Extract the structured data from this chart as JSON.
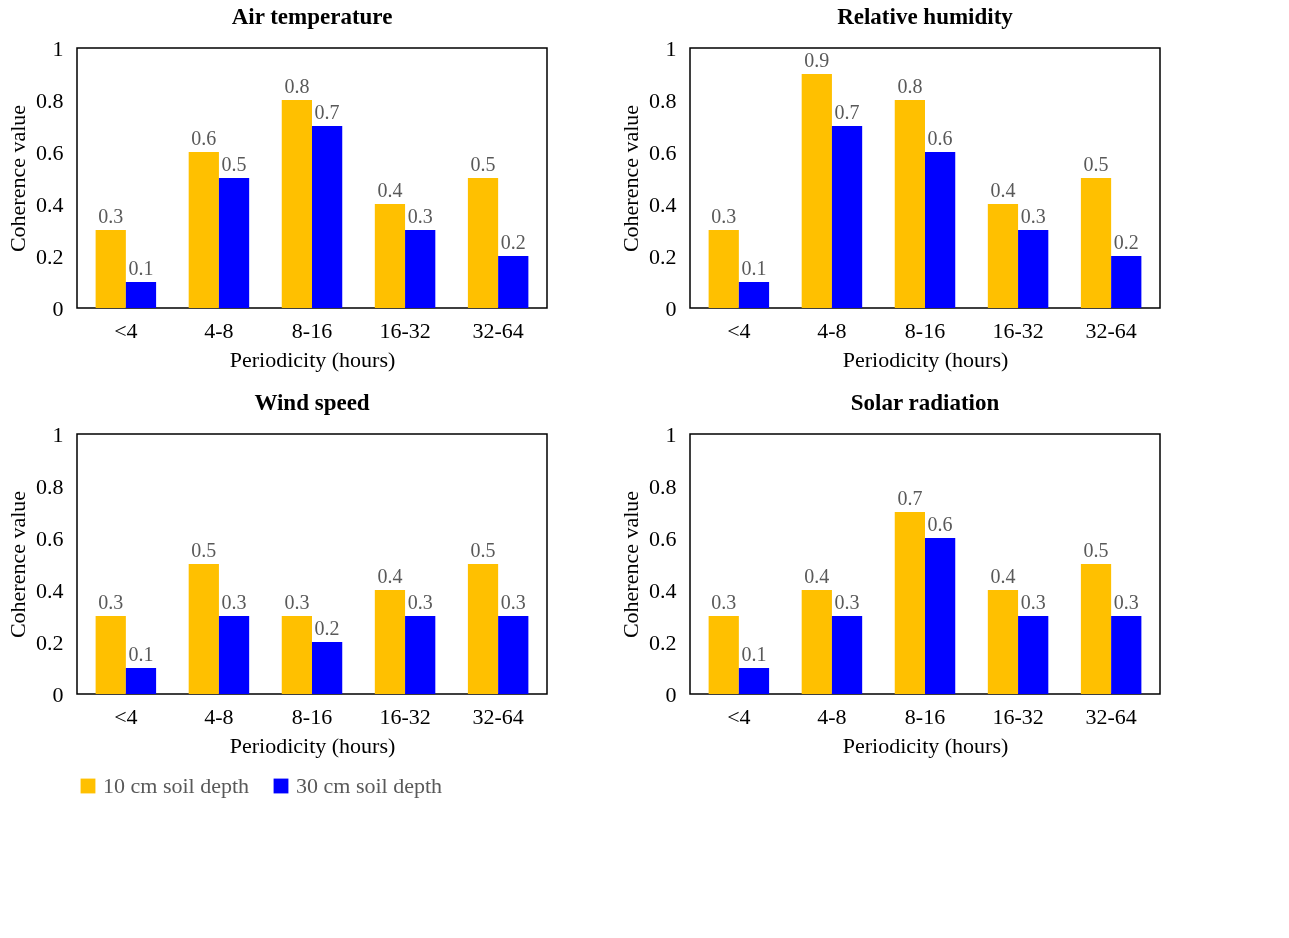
{
  "chart_data": [
    {
      "type": "bar",
      "title": "Air temperature",
      "xlabel": "Periodicity (hours)",
      "ylabel": "Coherence value",
      "categories": [
        "<4",
        "4-8",
        "8-16",
        "16-32",
        "32-64"
      ],
      "ylim": [
        0,
        1
      ],
      "yticks": [
        0,
        0.2,
        0.4,
        0.6,
        0.8,
        1
      ],
      "data_labels": true,
      "legend": "bottom",
      "grid": false,
      "series": [
        {
          "name": "10 cm soil depth",
          "color": "#ffc000",
          "values": [
            0.3,
            0.6,
            0.8,
            0.4,
            0.5
          ]
        },
        {
          "name": "30 cm soil depth",
          "color": "#0000ff",
          "values": [
            0.1,
            0.5,
            0.7,
            0.3,
            0.2
          ]
        }
      ]
    },
    {
      "type": "bar",
      "title": "Relative humidity",
      "xlabel": "Periodicity (hours)",
      "ylabel": "Coherence value",
      "categories": [
        "<4",
        "4-8",
        "8-16",
        "16-32",
        "32-64"
      ],
      "ylim": [
        0,
        1
      ],
      "yticks": [
        0,
        0.2,
        0.4,
        0.6,
        0.8,
        1
      ],
      "data_labels": true,
      "legend": "bottom",
      "grid": false,
      "series": [
        {
          "name": "10 cm soil depth",
          "color": "#ffc000",
          "values": [
            0.3,
            0.9,
            0.8,
            0.4,
            0.5
          ]
        },
        {
          "name": "30 cm soil depth",
          "color": "#0000ff",
          "values": [
            0.1,
            0.7,
            0.6,
            0.3,
            0.2
          ]
        }
      ]
    },
    {
      "type": "bar",
      "title": "Wind speed",
      "xlabel": "Periodicity (hours)",
      "ylabel": "Coherence value",
      "categories": [
        "<4",
        "4-8",
        "8-16",
        "16-32",
        "32-64"
      ],
      "ylim": [
        0,
        1
      ],
      "yticks": [
        0,
        0.2,
        0.4,
        0.6,
        0.8,
        1
      ],
      "data_labels": true,
      "legend": "bottom",
      "grid": false,
      "series": [
        {
          "name": "10 cm soil depth",
          "color": "#ffc000",
          "values": [
            0.3,
            0.5,
            0.3,
            0.4,
            0.5
          ]
        },
        {
          "name": "30 cm soil depth",
          "color": "#0000ff",
          "values": [
            0.1,
            0.3,
            0.2,
            0.3,
            0.3
          ]
        }
      ]
    },
    {
      "type": "bar",
      "title": "Solar radiation",
      "xlabel": "Periodicity (hours)",
      "ylabel": "Coherence value",
      "categories": [
        "<4",
        "4-8",
        "8-16",
        "16-32",
        "32-64"
      ],
      "ylim": [
        0,
        1
      ],
      "yticks": [
        0,
        0.2,
        0.4,
        0.6,
        0.8,
        1
      ],
      "data_labels": true,
      "legend": "bottom",
      "grid": false,
      "series": [
        {
          "name": "10 cm soil depth",
          "color": "#ffc000",
          "values": [
            0.3,
            0.4,
            0.7,
            0.4,
            0.5
          ]
        },
        {
          "name": "30 cm soil depth",
          "color": "#0000ff",
          "values": [
            0.1,
            0.3,
            0.6,
            0.3,
            0.3
          ]
        }
      ]
    }
  ]
}
